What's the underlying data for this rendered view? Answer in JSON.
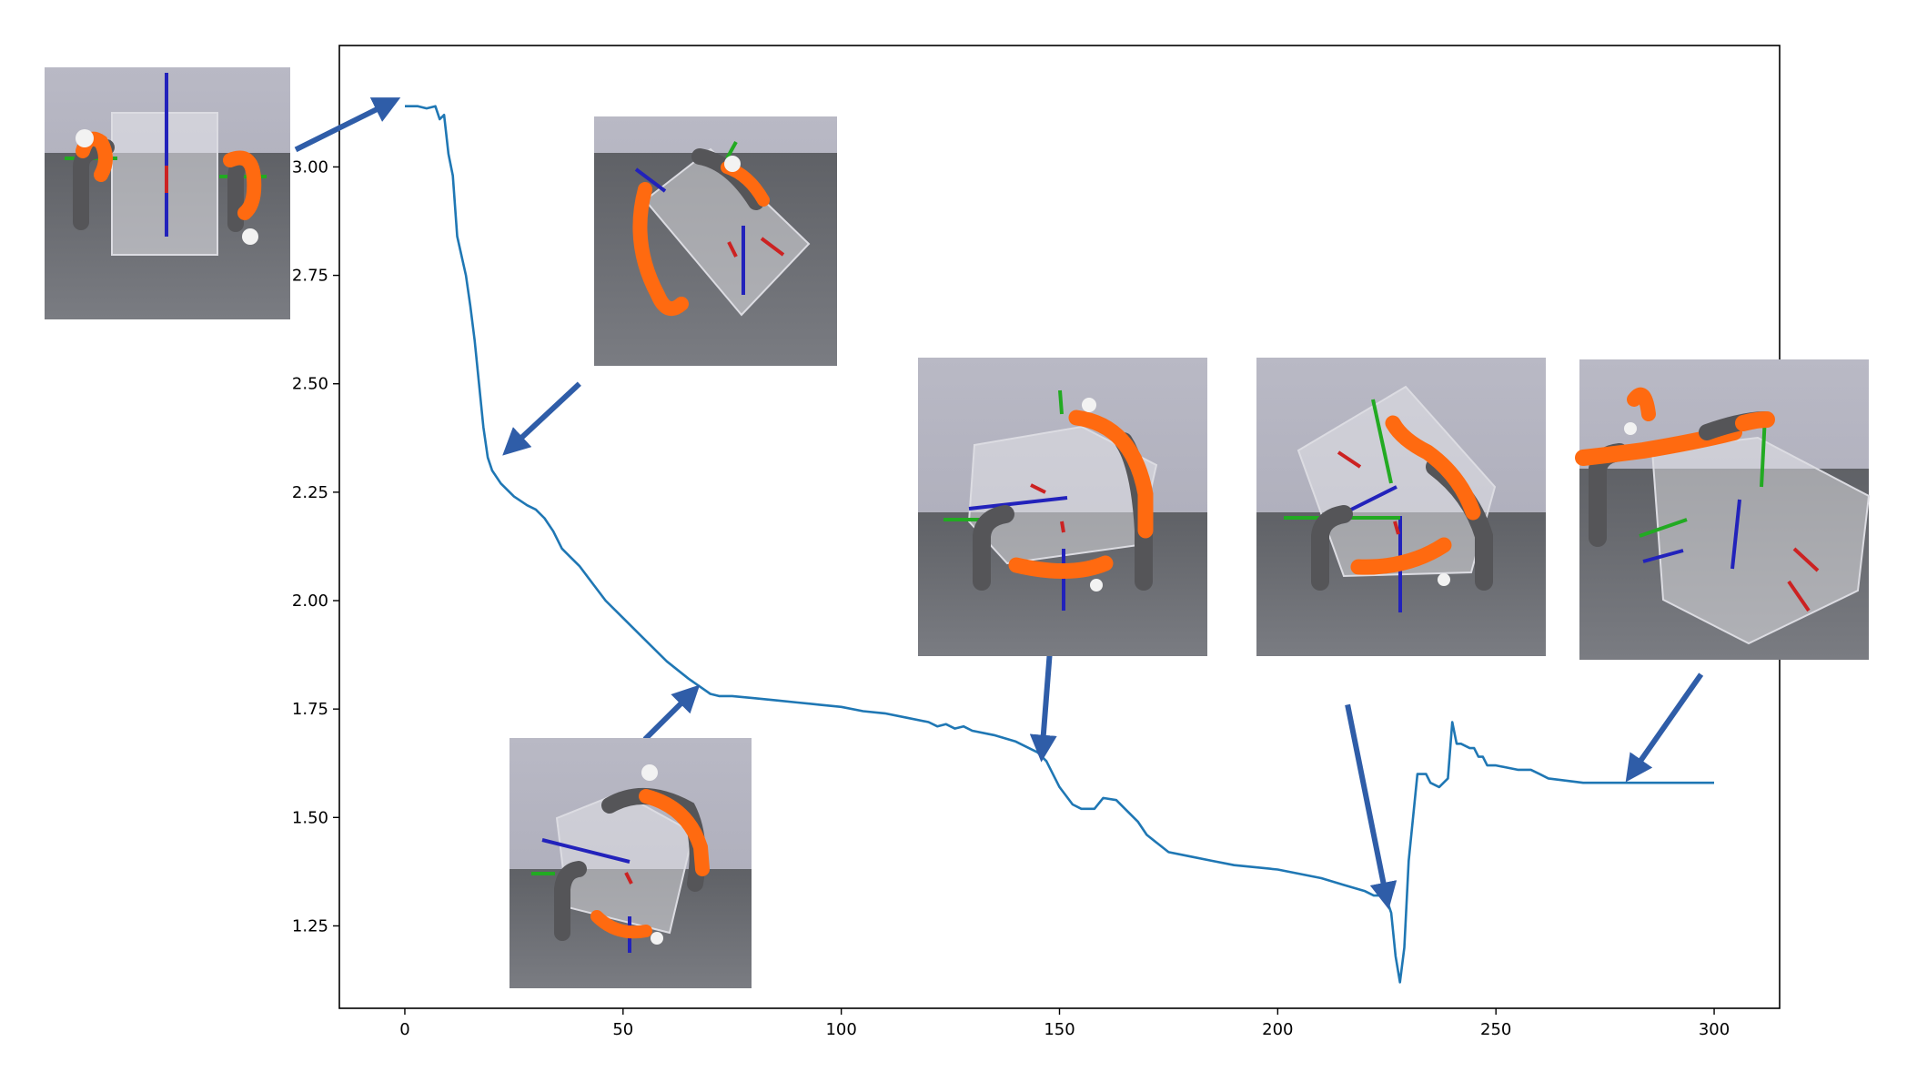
{
  "chart_data": {
    "type": "line",
    "title": "",
    "xlabel": "",
    "ylabel": "",
    "xlim": [
      -15,
      315
    ],
    "ylim": [
      1.06,
      3.28
    ],
    "x_ticks": [
      0,
      50,
      100,
      150,
      200,
      250,
      300
    ],
    "y_ticks": [
      1.25,
      1.5,
      1.75,
      2.0,
      2.25,
      2.5,
      2.75,
      3.0
    ],
    "x_tick_labels": [
      "0",
      "50",
      "100",
      "150",
      "200",
      "250",
      "300"
    ],
    "y_tick_labels": [
      "1.25",
      "1.50",
      "1.75",
      "2.00",
      "2.25",
      "2.50",
      "2.75",
      "3.00"
    ],
    "grid": false,
    "line_color": "#1f77b4",
    "arrow_color": "#2f5da8",
    "series": [
      {
        "x": [
          0,
          3,
          5,
          7,
          8,
          9,
          10,
          11,
          12,
          14,
          15,
          16,
          17,
          18,
          19,
          20,
          22,
          25,
          28,
          30,
          32,
          34,
          36,
          38,
          40,
          43,
          46,
          50,
          55,
          60,
          65,
          70,
          72,
          75,
          80,
          85,
          90,
          95,
          100,
          105,
          110,
          115,
          120,
          122,
          124,
          126,
          128,
          130,
          135,
          140,
          145,
          147,
          150,
          153,
          155,
          158,
          160,
          163,
          165,
          168,
          170,
          175,
          180,
          185,
          190,
          200,
          210,
          215,
          220,
          222,
          224,
          225,
          226,
          227,
          228,
          229,
          230,
          232,
          234,
          235,
          237,
          238,
          239,
          240,
          241,
          242,
          244,
          245,
          246,
          247,
          248,
          250,
          255,
          258,
          260,
          262,
          270,
          280,
          290,
          300
        ],
        "y": [
          3.14,
          3.14,
          3.135,
          3.14,
          3.11,
          3.12,
          3.03,
          2.98,
          2.84,
          2.75,
          2.68,
          2.6,
          2.5,
          2.4,
          2.33,
          2.3,
          2.27,
          2.24,
          2.22,
          2.21,
          2.19,
          2.16,
          2.12,
          2.1,
          2.08,
          2.04,
          2.0,
          1.96,
          1.91,
          1.86,
          1.82,
          1.785,
          1.78,
          1.78,
          1.775,
          1.77,
          1.765,
          1.76,
          1.755,
          1.745,
          1.74,
          1.73,
          1.72,
          1.71,
          1.715,
          1.705,
          1.71,
          1.7,
          1.69,
          1.675,
          1.65,
          1.63,
          1.57,
          1.53,
          1.52,
          1.52,
          1.545,
          1.54,
          1.52,
          1.49,
          1.46,
          1.42,
          1.41,
          1.4,
          1.39,
          1.38,
          1.36,
          1.345,
          1.33,
          1.32,
          1.32,
          1.31,
          1.28,
          1.18,
          1.12,
          1.2,
          1.4,
          1.6,
          1.6,
          1.58,
          1.57,
          1.58,
          1.59,
          1.72,
          1.67,
          1.67,
          1.66,
          1.66,
          1.64,
          1.64,
          1.62,
          1.62,
          1.61,
          1.61,
          1.6,
          1.59,
          1.58,
          1.58,
          1.58,
          1.58
        ]
      }
    ],
    "annotations": [
      {
        "type": "arrow",
        "from": [
          -25,
          3.04
        ],
        "to": [
          -3,
          3.15
        ]
      },
      {
        "type": "arrow",
        "from": [
          40,
          2.5
        ],
        "to": [
          24,
          2.35
        ]
      },
      {
        "type": "arrow",
        "from": [
          55,
          1.68
        ],
        "to": [
          66,
          1.79
        ]
      },
      {
        "type": "arrow",
        "from": [
          148,
          1.91
        ],
        "to": [
          146,
          1.65
        ]
      },
      {
        "type": "arrow",
        "from": [
          216,
          1.76
        ],
        "to": [
          225,
          1.31
        ]
      },
      {
        "type": "arrow",
        "from": [
          297,
          1.83
        ],
        "to": [
          281,
          1.6
        ]
      }
    ]
  },
  "insets": [
    {
      "name": "inset-step-0"
    },
    {
      "name": "inset-step-25"
    },
    {
      "name": "inset-step-65"
    },
    {
      "name": "inset-step-150"
    },
    {
      "name": "inset-step-225"
    },
    {
      "name": "inset-step-300"
    }
  ]
}
